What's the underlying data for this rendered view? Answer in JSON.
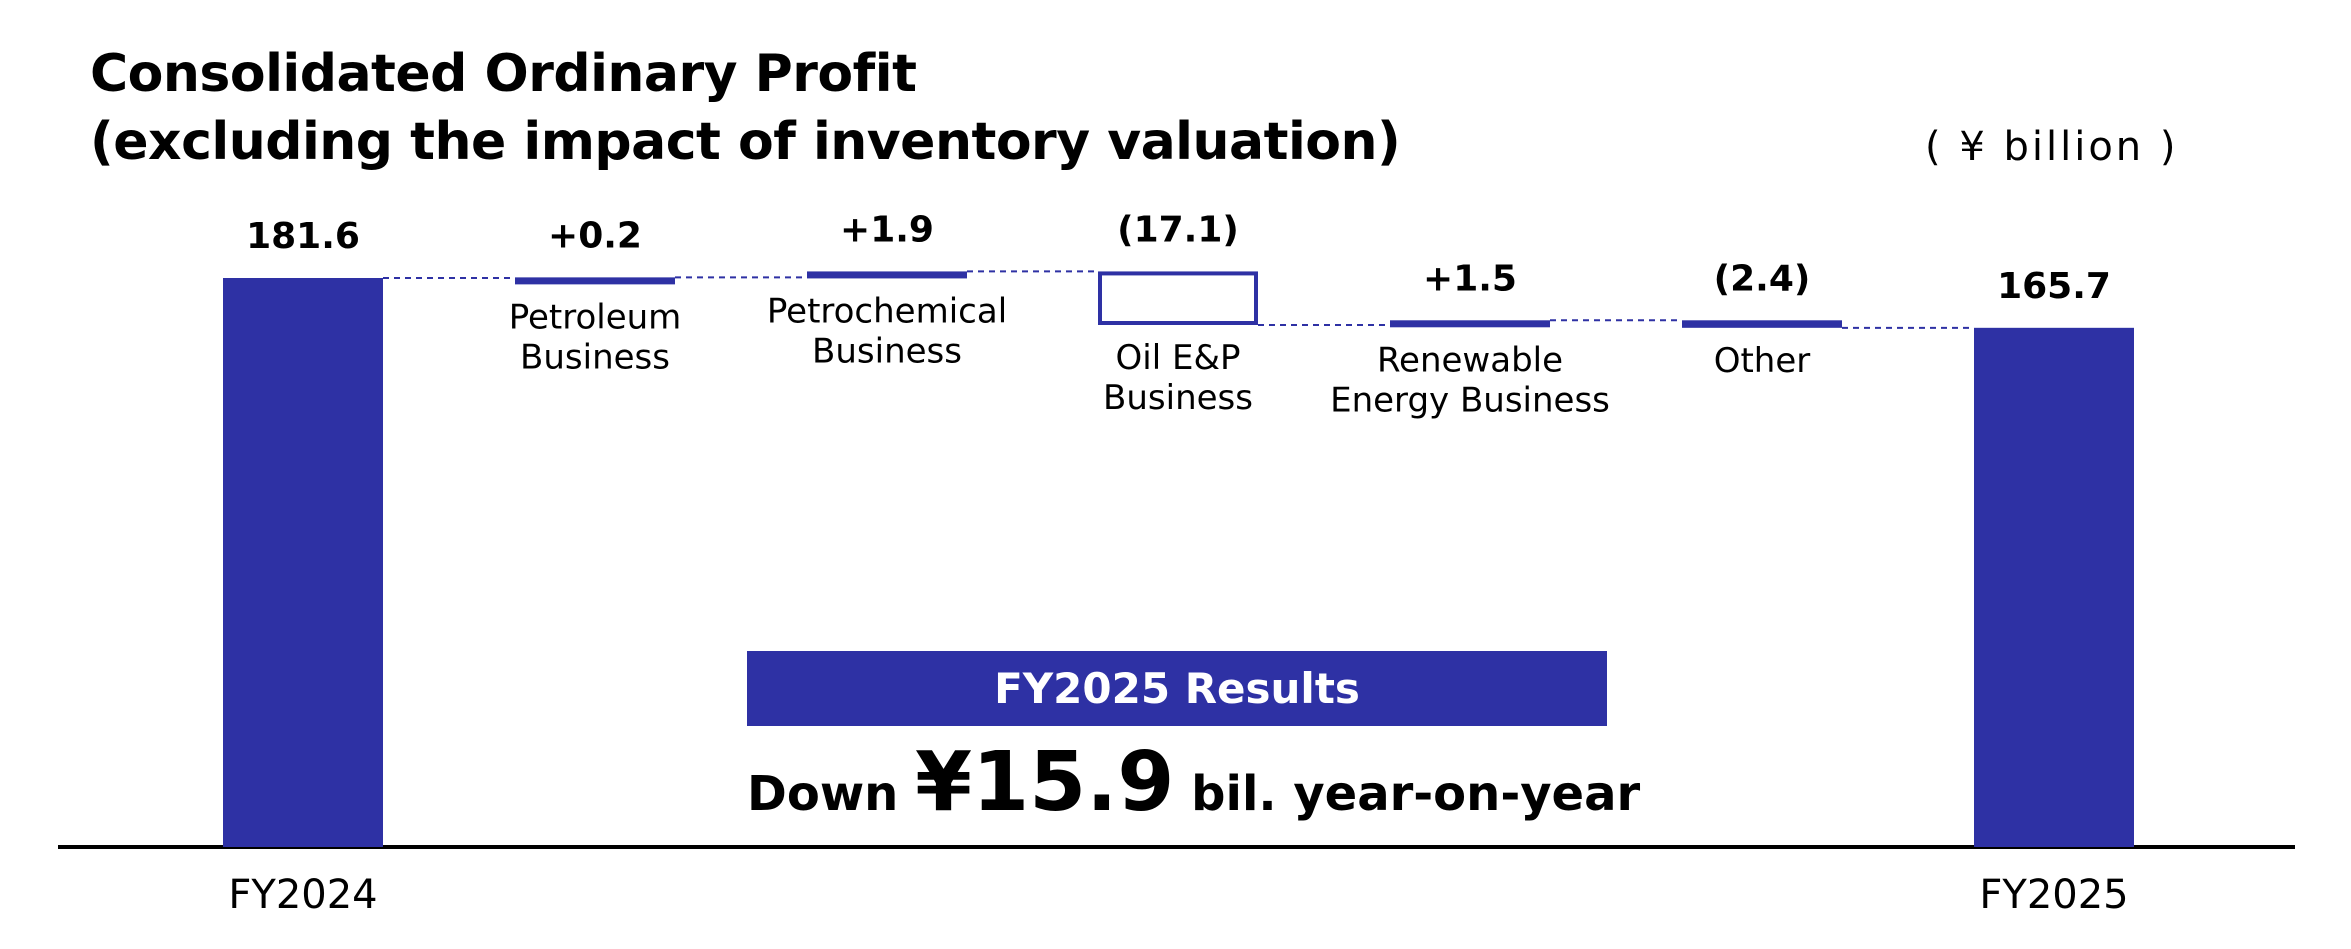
{
  "title_line1": "Consolidated Ordinary Profit",
  "title_line2": "(excluding the impact of inventory valuation)",
  "unit": "( ¥ billion )",
  "summary": {
    "box_label": "FY2025 Results",
    "prefix": "Down ",
    "amount": "¥15.9",
    "suffix": " bil. year-on-year"
  },
  "colors": {
    "bar": "#2e31a4",
    "text": "#000000"
  },
  "chart_data": {
    "type": "waterfall",
    "title": "Consolidated Ordinary Profit (excluding the impact of inventory valuation)",
    "ylabel": "( ¥ billion )",
    "ylim": [
      0,
      181.6
    ],
    "steps": [
      {
        "kind": "total",
        "category": "FY2024",
        "value": 181.6,
        "label": "181.6"
      },
      {
        "kind": "delta",
        "category": "Petroleum\nBusiness",
        "value": 0.2,
        "label": "+0.2"
      },
      {
        "kind": "delta",
        "category": "Petrochemical\nBusiness",
        "value": 1.9,
        "label": "+1.9"
      },
      {
        "kind": "delta",
        "category": "Oil E&P\nBusiness",
        "value": -17.1,
        "label": "(17.1)"
      },
      {
        "kind": "delta",
        "category": "Renewable\nEnergy Business",
        "value": 1.5,
        "label": "+1.5"
      },
      {
        "kind": "delta",
        "category": "Other",
        "value": -2.4,
        "label": "(2.4)"
      },
      {
        "kind": "total",
        "category": "FY2025",
        "value": 165.7,
        "label": "165.7"
      }
    ]
  }
}
